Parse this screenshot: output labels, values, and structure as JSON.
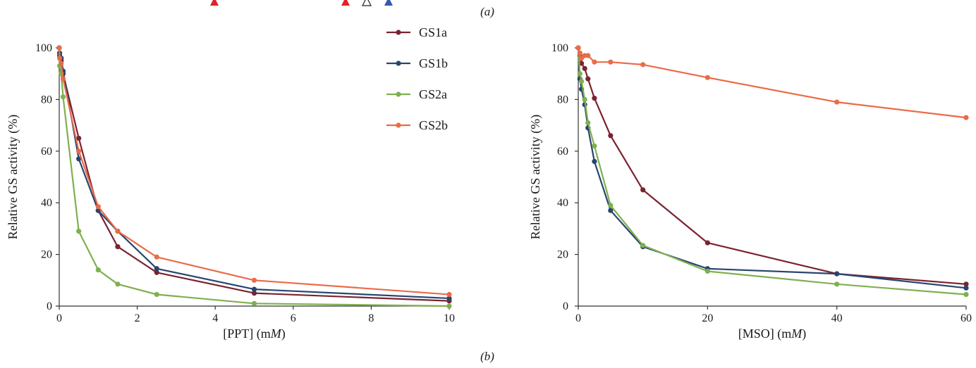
{
  "panel_labels": {
    "top": "(a)",
    "bottom": "(b)"
  },
  "legend_entries": [
    "GS1a",
    "GS1b",
    "GS2a",
    "GS2b"
  ],
  "markers": [
    {
      "color": "#e3212a",
      "filled": true
    },
    {
      "color": "#e3212a",
      "filled": true
    },
    {
      "color": "#222222",
      "filled": false
    },
    {
      "color": "#3a57b0",
      "filled": true
    }
  ],
  "chart_data": [
    {
      "type": "line",
      "xlabel": "[PPT] (mM)",
      "ylabel": "Relative GS activity (%)",
      "xlim": [
        0,
        10
      ],
      "ylim": [
        0,
        100
      ],
      "xticks": [
        0,
        2,
        4,
        6,
        8,
        10
      ],
      "yticks": [
        0,
        20,
        40,
        60,
        80,
        100
      ],
      "legend": "top-right",
      "series": [
        {
          "name": "GS1a",
          "color": "#7a2330",
          "points": [
            [
              0,
              100
            ],
            [
              0.01,
              97
            ],
            [
              0.05,
              95
            ],
            [
              0.1,
              90
            ],
            [
              0.5,
              65
            ],
            [
              1,
              37
            ],
            [
              1.5,
              23
            ],
            [
              2.5,
              13
            ],
            [
              5,
              5
            ],
            [
              10,
              2
            ]
          ]
        },
        {
          "name": "GS1b",
          "color": "#27466e",
          "points": [
            [
              0,
              100
            ],
            [
              0.01,
              98
            ],
            [
              0.05,
              96
            ],
            [
              0.1,
              91
            ],
            [
              0.5,
              57
            ],
            [
              1,
              37
            ],
            [
              1.5,
              29
            ],
            [
              2.5,
              14.5
            ],
            [
              5,
              6.5
            ],
            [
              10,
              3
            ]
          ]
        },
        {
          "name": "GS2a",
          "color": "#7fb04f",
          "points": [
            [
              0,
              100
            ],
            [
              0.01,
              93
            ],
            [
              0.05,
              90
            ],
            [
              0.1,
              81
            ],
            [
              0.5,
              29
            ],
            [
              1,
              14
            ],
            [
              1.5,
              8.5
            ],
            [
              2.5,
              4.5
            ],
            [
              5,
              1
            ],
            [
              10,
              0
            ]
          ]
        },
        {
          "name": "GS2b",
          "color": "#ea6b48",
          "points": [
            [
              0,
              100
            ],
            [
              0.01,
              96
            ],
            [
              0.05,
              94
            ],
            [
              0.1,
              88
            ],
            [
              0.5,
              60
            ],
            [
              1,
              38.5
            ],
            [
              1.5,
              29
            ],
            [
              2.5,
              19
            ],
            [
              5,
              10
            ],
            [
              10,
              4.5
            ]
          ]
        }
      ]
    },
    {
      "type": "line",
      "xlabel": "[MSO] (mM)",
      "ylabel": "Relative GS activity (%)",
      "xlim": [
        0,
        60
      ],
      "ylim": [
        0,
        100
      ],
      "xticks": [
        0,
        20,
        40,
        60
      ],
      "yticks": [
        0,
        20,
        40,
        60,
        80,
        100
      ],
      "series": [
        {
          "name": "GS1a",
          "color": "#7a2330",
          "points": [
            [
              0,
              100
            ],
            [
              0.25,
              97
            ],
            [
              0.5,
              94
            ],
            [
              1,
              92
            ],
            [
              1.5,
              88
            ],
            [
              2.5,
              80.5
            ],
            [
              5,
              66
            ],
            [
              10,
              45
            ],
            [
              20,
              24.5
            ],
            [
              40,
              12.5
            ],
            [
              60,
              8.5
            ]
          ]
        },
        {
          "name": "GS1b",
          "color": "#27466e",
          "points": [
            [
              0,
              100
            ],
            [
              0.25,
              88
            ],
            [
              0.5,
              84
            ],
            [
              1,
              78
            ],
            [
              1.5,
              69
            ],
            [
              2.5,
              56
            ],
            [
              5,
              37
            ],
            [
              10,
              23
            ],
            [
              20,
              14.5
            ],
            [
              40,
              12.5
            ],
            [
              60,
              7
            ]
          ]
        },
        {
          "name": "GS2a",
          "color": "#7fb04f",
          "points": [
            [
              0,
              100
            ],
            [
              0.25,
              90
            ],
            [
              0.5,
              87
            ],
            [
              1,
              80
            ],
            [
              1.5,
              71
            ],
            [
              2.5,
              62
            ],
            [
              5,
              39
            ],
            [
              10,
              23.5
            ],
            [
              20,
              13.5
            ],
            [
              40,
              8.5
            ],
            [
              60,
              4.5
            ]
          ]
        },
        {
          "name": "GS2b",
          "color": "#ea6b48",
          "points": [
            [
              0,
              100
            ],
            [
              0.25,
              98
            ],
            [
              0.5,
              96
            ],
            [
              1,
              97
            ],
            [
              1.5,
              97
            ],
            [
              2.5,
              94.5
            ],
            [
              5,
              94.5
            ],
            [
              10,
              93.5
            ],
            [
              20,
              88.5
            ],
            [
              40,
              79
            ],
            [
              60,
              73
            ]
          ]
        }
      ]
    }
  ]
}
